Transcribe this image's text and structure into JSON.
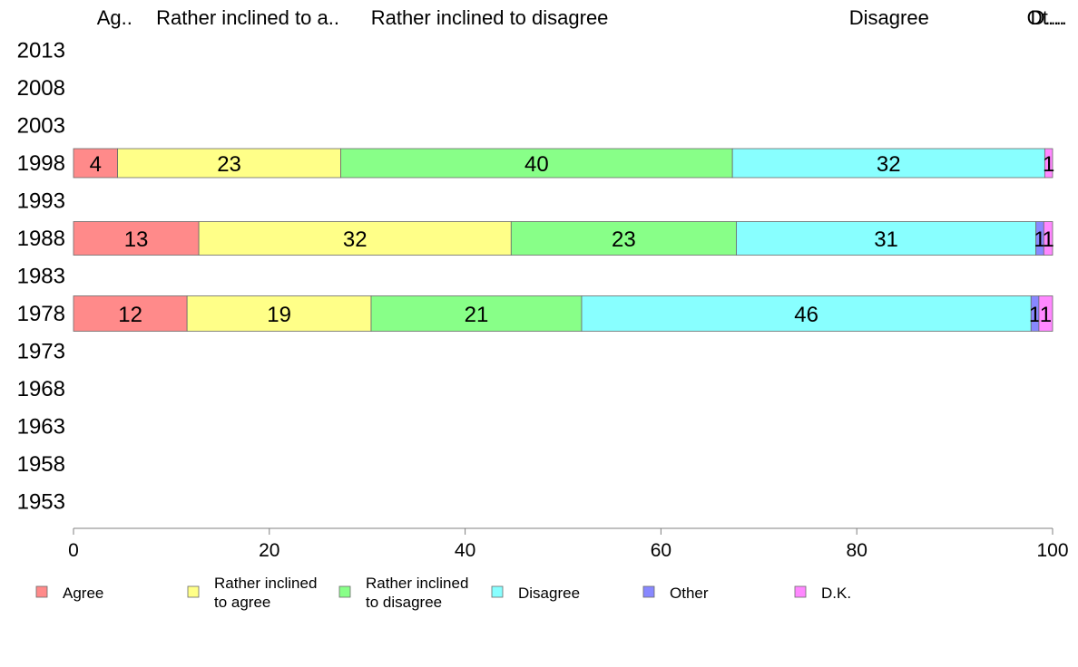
{
  "chart_data": {
    "type": "bar",
    "orientation": "horizontal",
    "stacked": true,
    "column_labels": [
      "Ag..",
      "Rather inclined to a..",
      "Rather inclined to disagree",
      "Disagree",
      "Ot...",
      "D...."
    ],
    "categories": [
      "2013",
      "2008",
      "2003",
      "1998",
      "1993",
      "1988",
      "1983",
      "1978",
      "1973",
      "1968",
      "1963",
      "1958",
      "1953"
    ],
    "series": [
      {
        "name": "Agree",
        "legend_lines": [
          "Agree"
        ],
        "color": "#ff8a8a",
        "values": [
          null,
          null,
          null,
          4.5,
          null,
          12.8,
          null,
          11.6,
          null,
          null,
          null,
          null,
          null
        ],
        "labels": [
          "",
          "",
          "",
          "4",
          "",
          "13",
          "",
          "12",
          "",
          "",
          "",
          "",
          ""
        ]
      },
      {
        "name": "Rather inclined to agree",
        "legend_lines": [
          "Rather inclined",
          "to agree"
        ],
        "color": "#ffff88",
        "values": [
          null,
          null,
          null,
          22.8,
          null,
          31.9,
          null,
          18.8,
          null,
          null,
          null,
          null,
          null
        ],
        "labels": [
          "",
          "",
          "",
          "23",
          "",
          "32",
          "",
          "19",
          "",
          "",
          "",
          "",
          ""
        ]
      },
      {
        "name": "Rather inclined to disagree",
        "legend_lines": [
          "Rather inclined",
          "to disagree"
        ],
        "color": "#88ff88",
        "values": [
          null,
          null,
          null,
          40.0,
          null,
          23.0,
          null,
          21.5,
          null,
          null,
          null,
          null,
          null
        ],
        "labels": [
          "",
          "",
          "",
          "40",
          "",
          "23",
          "",
          "21",
          "",
          "",
          "",
          "",
          ""
        ]
      },
      {
        "name": "Disagree",
        "legend_lines": [
          "Disagree"
        ],
        "color": "#88ffff",
        "values": [
          null,
          null,
          null,
          31.9,
          null,
          30.6,
          null,
          45.9,
          null,
          null,
          null,
          null,
          null
        ],
        "labels": [
          "",
          "",
          "",
          "32",
          "",
          "31",
          "",
          "46",
          "",
          "",
          "",
          "",
          ""
        ]
      },
      {
        "name": "Other",
        "legend_lines": [
          "Other"
        ],
        "color": "#8888ff",
        "values": [
          null,
          null,
          null,
          0.0,
          null,
          0.8,
          null,
          0.8,
          null,
          null,
          null,
          null,
          null
        ],
        "labels": [
          "",
          "",
          "",
          "",
          "",
          "1",
          "",
          "1",
          "",
          "",
          "",
          "",
          ""
        ]
      },
      {
        "name": "D.K.",
        "legend_lines": [
          "D.K."
        ],
        "color": "#ff88ff",
        "values": [
          null,
          null,
          null,
          0.8,
          null,
          0.9,
          null,
          1.4,
          null,
          null,
          null,
          null,
          null
        ],
        "labels": [
          "",
          "",
          "",
          "1",
          "",
          "1",
          "",
          "1",
          "",
          "",
          "",
          "",
          ""
        ]
      }
    ],
    "xlim": [
      0,
      100
    ],
    "xticks": [
      "0",
      "20",
      "40",
      "60",
      "80",
      "100"
    ],
    "grid": false,
    "legend_position": "bottom"
  }
}
